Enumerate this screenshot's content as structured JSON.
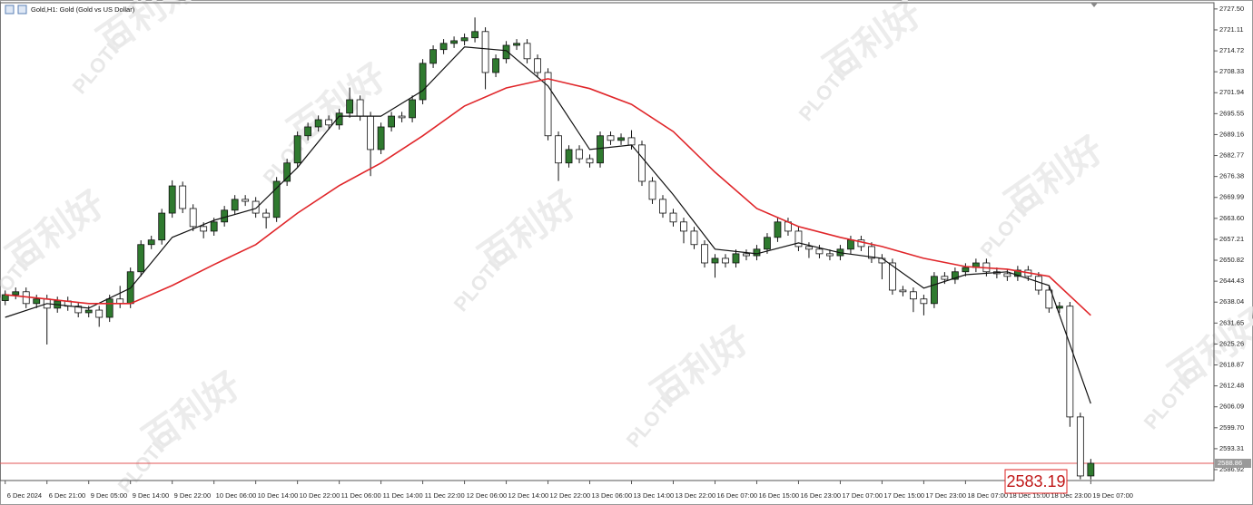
{
  "chart_data": {
    "type": "candlestick",
    "title": "Gold,H1: Gold (Gold vs US Dollar)",
    "up_color": "#2f7a2f",
    "down_color": "#ffffff",
    "candles": [
      [
        2638.5,
        2641.6,
        2637.1,
        2640.3
      ],
      [
        2640.3,
        2642.5,
        2638.9,
        2641.2
      ],
      [
        2641.2,
        2642.5,
        2636.2,
        2637.6
      ],
      [
        2637.6,
        2640.3,
        2636.2,
        2639.0
      ],
      [
        2639.0,
        2640.3,
        2625.1,
        2636.2
      ],
      [
        2636.2,
        2639.7,
        2634.8,
        2638.4
      ],
      [
        2638.4,
        2639.7,
        2635.4,
        2636.8
      ],
      [
        2636.8,
        2638.1,
        2633.4,
        2634.8
      ],
      [
        2634.8,
        2636.9,
        2633.4,
        2635.6
      ],
      [
        2635.6,
        2636.9,
        2630.5,
        2633.4
      ],
      [
        2633.4,
        2640.3,
        2632.0,
        2639.0
      ],
      [
        2639.0,
        2643.0,
        2636.2,
        2637.6
      ],
      [
        2637.6,
        2648.6,
        2636.2,
        2647.3
      ],
      [
        2647.3,
        2656.9,
        2645.9,
        2655.6
      ],
      [
        2655.6,
        2658.3,
        2654.2,
        2657.0
      ],
      [
        2657.0,
        2666.5,
        2655.6,
        2665.2
      ],
      [
        2665.2,
        2675.2,
        2663.8,
        2673.5
      ],
      [
        2673.5,
        2674.8,
        2665.2,
        2666.6
      ],
      [
        2666.6,
        2667.9,
        2659.7,
        2661.1
      ],
      [
        2661.1,
        2662.4,
        2657.5,
        2659.7
      ],
      [
        2659.7,
        2663.8,
        2658.3,
        2662.5
      ],
      [
        2662.5,
        2667.4,
        2661.1,
        2666.1
      ],
      [
        2666.1,
        2670.7,
        2664.7,
        2669.4
      ],
      [
        2669.4,
        2670.7,
        2667.4,
        2668.8
      ],
      [
        2668.8,
        2670.1,
        2663.8,
        2665.2
      ],
      [
        2665.2,
        2666.5,
        2660.5,
        2663.9
      ],
      [
        2663.9,
        2676.2,
        2662.5,
        2674.9
      ],
      [
        2674.9,
        2681.8,
        2673.5,
        2680.5
      ],
      [
        2680.5,
        2690.1,
        2679.1,
        2688.8
      ],
      [
        2688.8,
        2692.8,
        2687.4,
        2691.5
      ],
      [
        2691.5,
        2695.0,
        2690.1,
        2693.7
      ],
      [
        2693.7,
        2695.0,
        2690.7,
        2692.1
      ],
      [
        2692.1,
        2697.0,
        2690.7,
        2695.7
      ],
      [
        2695.7,
        2703.5,
        2694.3,
        2699.8
      ],
      [
        2699.8,
        2701.1,
        2693.4,
        2694.8
      ],
      [
        2694.8,
        2696.1,
        2676.5,
        2684.6
      ],
      [
        2684.6,
        2692.8,
        2683.2,
        2691.5
      ],
      [
        2691.5,
        2696.1,
        2690.1,
        2694.8
      ],
      [
        2694.8,
        2696.1,
        2692.9,
        2694.3
      ],
      [
        2694.3,
        2701.1,
        2692.9,
        2699.8
      ],
      [
        2699.8,
        2712.2,
        2698.4,
        2710.9
      ],
      [
        2710.9,
        2716.4,
        2709.5,
        2715.1
      ],
      [
        2715.1,
        2718.3,
        2713.7,
        2717.0
      ],
      [
        2717.0,
        2719.1,
        2715.6,
        2717.8
      ],
      [
        2717.8,
        2720.0,
        2716.4,
        2718.7
      ],
      [
        2718.7,
        2724.9,
        2717.3,
        2720.6
      ],
      [
        2720.6,
        2721.9,
        2703.0,
        2708.1
      ],
      [
        2708.1,
        2713.6,
        2706.7,
        2712.3
      ],
      [
        2712.3,
        2717.7,
        2710.9,
        2716.4
      ],
      [
        2716.4,
        2718.3,
        2715.0,
        2717.0
      ],
      [
        2717.0,
        2718.3,
        2710.9,
        2712.3
      ],
      [
        2712.3,
        2713.6,
        2706.7,
        2708.1
      ],
      [
        2708.1,
        2709.4,
        2687.4,
        2688.8
      ],
      [
        2688.8,
        2690.1,
        2675.0,
        2680.5
      ],
      [
        2680.5,
        2685.9,
        2679.1,
        2684.6
      ],
      [
        2684.6,
        2685.9,
        2680.4,
        2681.8
      ],
      [
        2681.8,
        2683.1,
        2679.1,
        2680.5
      ],
      [
        2680.5,
        2690.1,
        2679.1,
        2688.8
      ],
      [
        2688.8,
        2690.1,
        2686.0,
        2687.4
      ],
      [
        2687.4,
        2689.5,
        2686.0,
        2688.2
      ],
      [
        2688.2,
        2690.5,
        2684.6,
        2686.0
      ],
      [
        2686.0,
        2687.3,
        2673.5,
        2674.9
      ],
      [
        2674.9,
        2676.2,
        2668.0,
        2669.4
      ],
      [
        2669.4,
        2670.7,
        2663.8,
        2665.2
      ],
      [
        2665.2,
        2666.5,
        2661.1,
        2662.5
      ],
      [
        2662.5,
        2663.8,
        2656.0,
        2659.7
      ],
      [
        2659.7,
        2661.0,
        2654.2,
        2655.6
      ],
      [
        2655.6,
        2656.9,
        2648.6,
        2650.0
      ],
      [
        2650.0,
        2652.7,
        2645.5,
        2651.4
      ],
      [
        2651.4,
        2652.7,
        2648.6,
        2650.0
      ],
      [
        2650.0,
        2654.1,
        2648.6,
        2652.8
      ],
      [
        2652.8,
        2654.1,
        2650.8,
        2652.2
      ],
      [
        2652.2,
        2655.5,
        2650.8,
        2654.2
      ],
      [
        2654.2,
        2659.1,
        2652.8,
        2657.8
      ],
      [
        2657.8,
        2663.8,
        2656.4,
        2662.5
      ],
      [
        2662.5,
        2663.8,
        2658.3,
        2659.7
      ],
      [
        2659.7,
        2661.0,
        2653.6,
        2655.0
      ],
      [
        2655.0,
        2656.3,
        2651.5,
        2654.2
      ],
      [
        2654.2,
        2655.5,
        2651.4,
        2652.8
      ],
      [
        2652.8,
        2654.1,
        2650.8,
        2652.2
      ],
      [
        2652.2,
        2655.5,
        2650.8,
        2654.2
      ],
      [
        2654.2,
        2658.3,
        2652.8,
        2657.0
      ],
      [
        2657.0,
        2658.3,
        2653.6,
        2655.0
      ],
      [
        2655.0,
        2656.3,
        2650.0,
        2651.4
      ],
      [
        2651.4,
        2652.7,
        2645.0,
        2650.0
      ],
      [
        2650.0,
        2651.3,
        2640.3,
        2641.7
      ],
      [
        2641.7,
        2643.0,
        2639.8,
        2641.2
      ],
      [
        2641.2,
        2642.5,
        2635.0,
        2639.0
      ],
      [
        2639.0,
        2640.3,
        2634.0,
        2637.6
      ],
      [
        2637.6,
        2647.2,
        2636.2,
        2645.9
      ],
      [
        2645.9,
        2647.2,
        2643.6,
        2645.0
      ],
      [
        2645.0,
        2648.6,
        2643.6,
        2647.3
      ],
      [
        2647.3,
        2649.9,
        2645.9,
        2648.6
      ],
      [
        2648.6,
        2651.3,
        2647.2,
        2650.0
      ],
      [
        2650.0,
        2651.3,
        2645.9,
        2647.3
      ],
      [
        2647.3,
        2648.6,
        2645.3,
        2646.7
      ],
      [
        2646.7,
        2648.0,
        2644.5,
        2645.9
      ],
      [
        2645.9,
        2649.1,
        2644.5,
        2647.8
      ],
      [
        2647.8,
        2649.1,
        2644.5,
        2645.9
      ],
      [
        2645.9,
        2647.2,
        2640.3,
        2641.7
      ],
      [
        2641.7,
        2643.0,
        2634.8,
        2636.2
      ],
      [
        2636.2,
        2638.1,
        2634.8,
        2636.8
      ],
      [
        2636.8,
        2638.1,
        2600.0,
        2603.0
      ],
      [
        2603.0,
        2604.3,
        2584.0,
        2585.0
      ],
      [
        2585.0,
        2590.2,
        2583.9,
        2588.86
      ]
    ],
    "series": [
      {
        "color": "#111111",
        "x": [
          0,
          4,
          8,
          12,
          16,
          20,
          24,
          28,
          32,
          36,
          40,
          44,
          48,
          52,
          56,
          60,
          64,
          68,
          72,
          76,
          80,
          84,
          88,
          92,
          96,
          100,
          104
        ],
        "values": [
          2633.4,
          2637.6,
          2636.2,
          2642.3,
          2657.8,
          2663.0,
          2666.6,
          2679.1,
          2694.8,
          2694.8,
          2702.6,
          2715.9,
          2714.8,
          2704.0,
          2684.6,
          2686.0,
          2670.8,
          2654.2,
          2652.8,
          2656.1,
          2653.1,
          2651.4,
          2642.3,
          2646.4,
          2647.3,
          2643.1,
          2607.1
        ]
      },
      {
        "color": "#e0262a",
        "x": [
          0,
          4,
          8,
          12,
          16,
          20,
          24,
          28,
          32,
          36,
          40,
          44,
          48,
          52,
          56,
          60,
          64,
          68,
          72,
          76,
          80,
          84,
          88,
          92,
          96,
          100,
          104
        ],
        "values": [
          2640.3,
          2639.0,
          2637.6,
          2637.6,
          2643.1,
          2649.5,
          2655.6,
          2665.2,
          2673.6,
          2680.5,
          2688.8,
          2697.9,
          2703.4,
          2706.2,
          2703.2,
          2698.4,
          2690.1,
          2677.7,
          2666.6,
          2661.1,
          2657.8,
          2655.0,
          2651.4,
          2648.9,
          2648.1,
          2645.9,
          2634.0
        ]
      }
    ],
    "xlim": [
      -0.5,
      115.8
    ],
    "xticks": [
      {
        "value": 0,
        "label": "6 Dec 2024"
      },
      {
        "value": 4,
        "label": "6 Dec 21:00"
      },
      {
        "value": 8,
        "label": "9 Dec 05:00"
      },
      {
        "value": 12,
        "label": "9 Dec 14:00"
      },
      {
        "value": 16,
        "label": "9 Dec 22:00"
      },
      {
        "value": 20,
        "label": "10 Dec 06:00"
      },
      {
        "value": 24,
        "label": "10 Dec 14:00"
      },
      {
        "value": 28,
        "label": "10 Dec 22:00"
      },
      {
        "value": 32,
        "label": "11 Dec 06:00"
      },
      {
        "value": 36,
        "label": "11 Dec 14:00"
      },
      {
        "value": 40,
        "label": "11 Dec 22:00"
      },
      {
        "value": 44,
        "label": "12 Dec 06:00"
      },
      {
        "value": 48,
        "label": "12 Dec 14:00"
      },
      {
        "value": 52,
        "label": "12 Dec 22:00"
      },
      {
        "value": 56,
        "label": "13 Dec 06:00"
      },
      {
        "value": 60,
        "label": "13 Dec 14:00"
      },
      {
        "value": 64,
        "label": "13 Dec 22:00"
      },
      {
        "value": 68,
        "label": "16 Dec 07:00"
      },
      {
        "value": 72,
        "label": "16 Dec 15:00"
      },
      {
        "value": 76,
        "label": "16 Dec 23:00"
      },
      {
        "value": 80,
        "label": "17 Dec 07:00"
      },
      {
        "value": 84,
        "label": "17 Dec 15:00"
      },
      {
        "value": 88,
        "label": "17 Dec 23:00"
      },
      {
        "value": 92,
        "label": "18 Dec 07:00"
      },
      {
        "value": 96,
        "label": "18 Dec 15:00"
      },
      {
        "value": 100,
        "label": "18 Dec 23:00"
      },
      {
        "value": 104,
        "label": "19 Dec 07:00"
      }
    ],
    "ylim": [
      2583.6,
      2729.4
    ],
    "yticks": [
      {
        "value": 2727.5,
        "label": "2727.50"
      },
      2721.11,
      2714.72,
      2708.33,
      2701.94,
      2695.55,
      2689.16,
      2682.77,
      2676.38,
      2669.99,
      {
        "value": 2663.6,
        "label": "2663.60"
      },
      2657.21,
      2650.82,
      2644.43,
      2638.04,
      2631.65,
      2625.26,
      2618.87,
      2612.48,
      2606.09,
      {
        "value": 2599.7,
        "label": "2599.70"
      },
      2593.31,
      2586.92
    ],
    "price_line": {
      "value": 2588.86,
      "label": "2588.86",
      "color": "#e05555"
    },
    "annotation": "2583.19",
    "watermarks": [
      "百利好",
      "PLOTIO"
    ]
  }
}
